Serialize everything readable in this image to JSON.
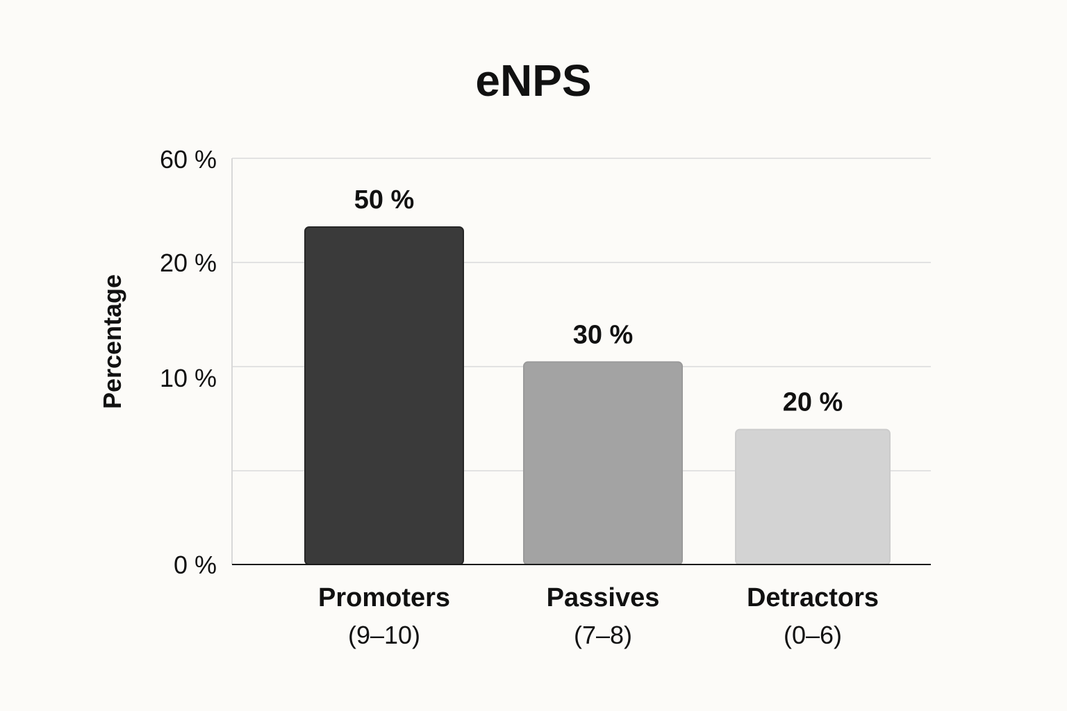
{
  "chart_data": {
    "type": "bar",
    "title": "eNPS",
    "ylabel": "Percentage",
    "xlabel": "",
    "categories": [
      "Promoters",
      "Passives",
      "Detractors"
    ],
    "category_sublabels": [
      "(9–10)",
      "(7–8)",
      "(0–6)"
    ],
    "values": [
      50,
      30,
      20
    ],
    "value_labels": [
      "50 %",
      "30 %",
      "20 %"
    ],
    "y_tick_labels": [
      "0 %",
      "10 %",
      "20 %",
      "60 %"
    ],
    "grid": true,
    "legend": "none"
  },
  "colors": {
    "background": "#fcfbf8",
    "bars": [
      "#3a3a3a",
      "#a3a3a3",
      "#d3d3d3"
    ],
    "bar_edges": [
      "#262626",
      "#9a9a9a",
      "#cccccc"
    ]
  }
}
